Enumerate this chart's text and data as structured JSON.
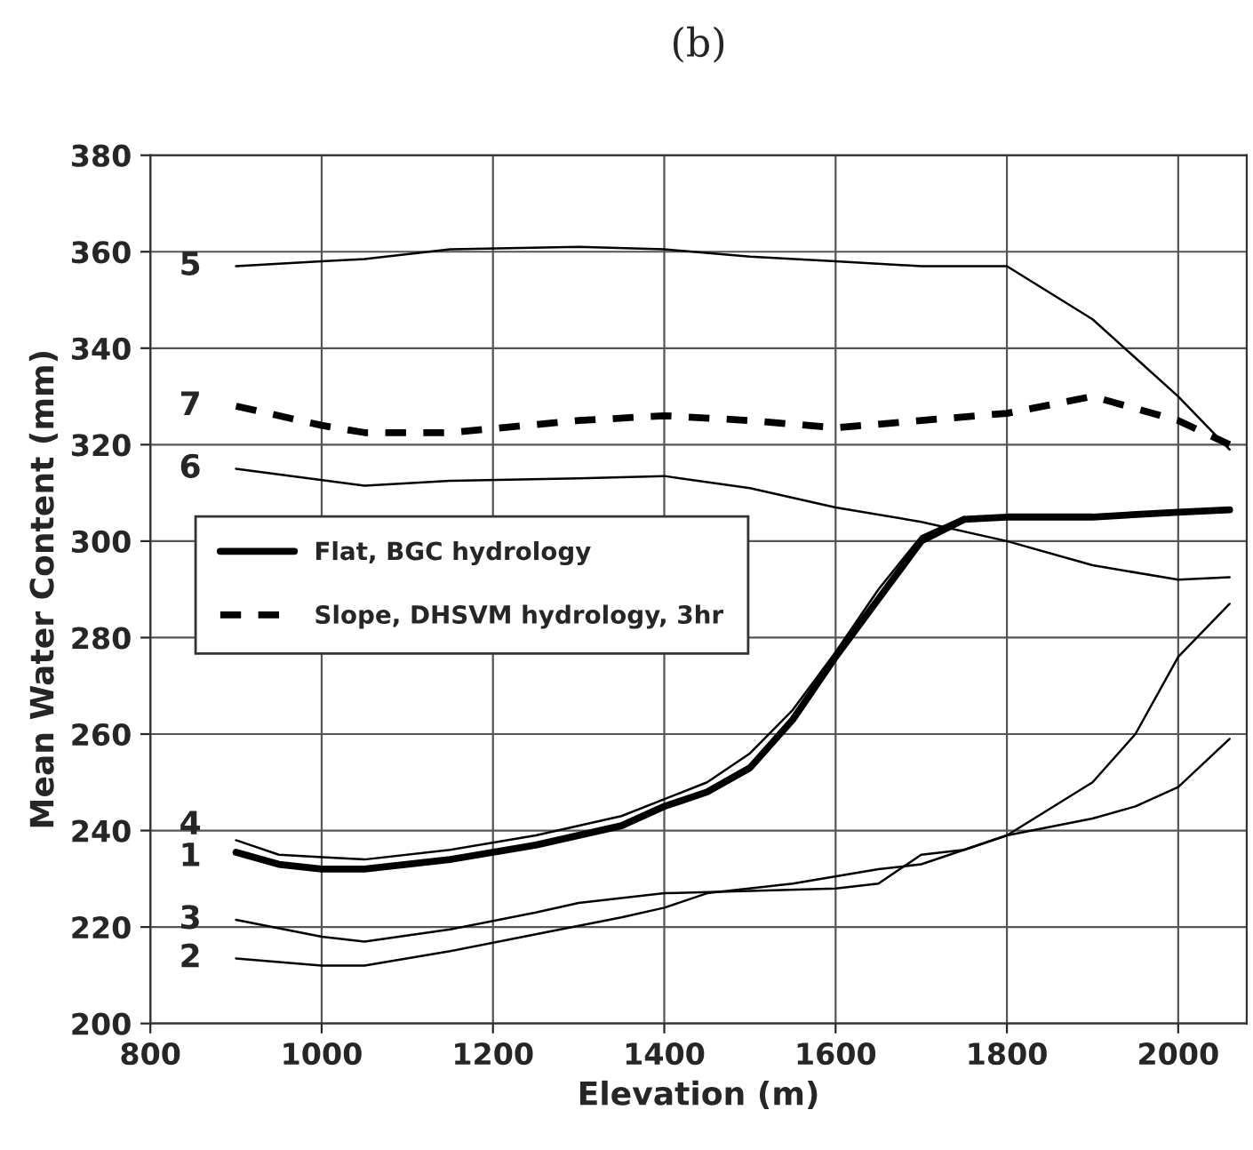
{
  "chart_data": {
    "type": "line",
    "title": "(b)",
    "xlabel": "Elevation (m)",
    "ylabel": "Mean Water Content (mm)",
    "xlim": [
      800,
      2080
    ],
    "xticks": [
      800,
      1000,
      1200,
      1400,
      1600,
      1800,
      2000
    ],
    "ylim": [
      200,
      380
    ],
    "yticks": [
      200,
      220,
      240,
      260,
      280,
      300,
      320,
      340,
      360,
      380
    ],
    "grid": true,
    "legend": "left",
    "marker": "none",
    "series": [
      {
        "color": "#000000",
        "x": [
          900,
          1000,
          1050,
          1150,
          1300,
          1400,
          1500,
          1600,
          1700,
          1800,
          1900,
          2000,
          2060
        ],
        "values": [
          357,
          358,
          358.5,
          360.5,
          361,
          360.5,
          359,
          358,
          357,
          357,
          346,
          330,
          319
        ]
      },
      {
        "name": "Slope, DHSVM hydrology, 3hr",
        "color": "#000000",
        "line_style": "dashed",
        "x": [
          900,
          1000,
          1050,
          1150,
          1300,
          1400,
          1500,
          1600,
          1700,
          1800,
          1900,
          2000,
          2060
        ],
        "values": [
          328,
          324,
          322.5,
          322.5,
          325,
          326,
          325,
          323.5,
          325,
          326.5,
          330,
          325,
          320
        ]
      },
      {
        "color": "#000000",
        "x": [
          900,
          1050,
          1150,
          1300,
          1400,
          1500,
          1600,
          1700,
          1800,
          1900,
          2000,
          2060
        ],
        "values": [
          315,
          311.5,
          312.5,
          313,
          313.5,
          311,
          307,
          304,
          300,
          295,
          292,
          292.5
        ]
      },
      {
        "name": "Flat, BGC hydrology",
        "color": "#000000",
        "line_style": "solid",
        "x": [
          900,
          950,
          1000,
          1050,
          1150,
          1250,
          1350,
          1400,
          1450,
          1500,
          1550,
          1600,
          1650,
          1700,
          1750,
          1800,
          1900,
          2000,
          2060
        ],
        "values": [
          235.5,
          233,
          232,
          232,
          234,
          237,
          241,
          245,
          248,
          253,
          263,
          276,
          288,
          300,
          304.5,
          305,
          305,
          306,
          306.5
        ]
      },
      {
        "color": "#000000",
        "x": [
          900,
          950,
          1000,
          1050,
          1150,
          1250,
          1350,
          1450,
          1500,
          1550,
          1600,
          1650,
          1700,
          1750
        ],
        "values": [
          238,
          235,
          234.5,
          234,
          236,
          239,
          243,
          250,
          256,
          265,
          277,
          290,
          301,
          305
        ]
      },
      {
        "color": "#000000",
        "x": [
          900,
          1000,
          1050,
          1150,
          1250,
          1300,
          1400,
          1500,
          1600,
          1650,
          1700,
          1750,
          1800,
          1900,
          1950,
          2000,
          2060
        ],
        "values": [
          221.5,
          218,
          217,
          219.5,
          223,
          225,
          227,
          227.5,
          228,
          229,
          235,
          236,
          239,
          250,
          260,
          276,
          287
        ]
      },
      {
        "color": "#000000",
        "x": [
          900,
          1000,
          1050,
          1150,
          1250,
          1350,
          1400,
          1450,
          1550,
          1650,
          1700,
          1800,
          1900,
          1950,
          2000,
          2060
        ],
        "values": [
          213.5,
          212,
          212,
          215,
          218.5,
          222,
          224,
          227,
          229,
          232,
          233,
          239,
          242.5,
          245,
          249,
          259
        ]
      }
    ],
    "annotations": [
      "5",
      "7",
      "6",
      "1",
      "4",
      "3",
      "2"
    ]
  }
}
